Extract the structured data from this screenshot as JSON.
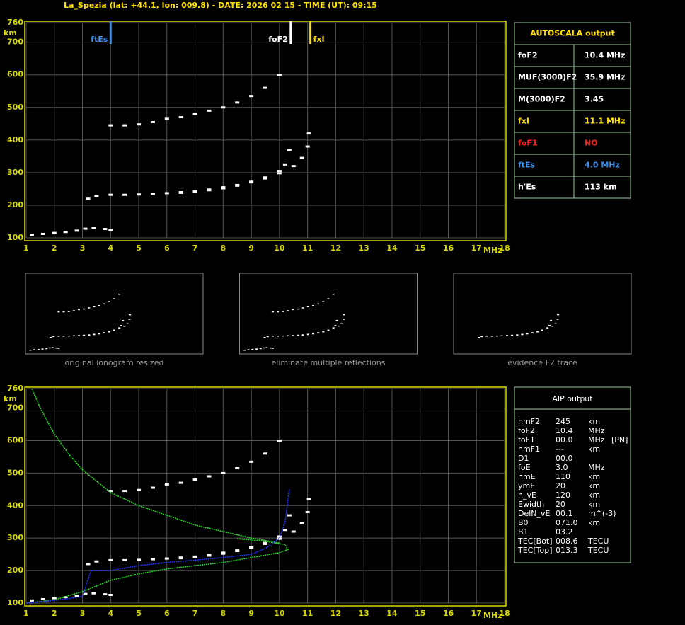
{
  "header": {
    "title": "La_Spezia (lat: +44.1, lon: 009.8) - DATE: 2026 02 15 - TIME (UT): 09:15"
  },
  "chart_data": [
    {
      "type": "scatter",
      "xlabel": "MHz",
      "ylabel": "km",
      "xlim": [
        1,
        18
      ],
      "ylim": [
        100,
        760
      ],
      "xticks": [
        1,
        2,
        3,
        4,
        5,
        6,
        7,
        8,
        9,
        10,
        11,
        12,
        13,
        14,
        15,
        16,
        17,
        18
      ],
      "yticks": [
        100,
        200,
        300,
        400,
        500,
        600,
        700,
        760
      ],
      "grid": true,
      "markers": [
        {
          "label": "ftEs",
          "x": 4.0,
          "color": "#3a8fe8"
        },
        {
          "label": "foF2",
          "x": 10.4,
          "color": "#ffffff"
        },
        {
          "label": "fxI",
          "x": 11.1,
          "color": "#ffe000"
        }
      ],
      "series": [
        {
          "color": "#ffffff",
          "style": "points",
          "x": [
            3.2,
            3.5,
            4,
            4.5,
            5,
            5.5,
            6,
            6.5,
            7,
            7.5,
            8,
            8.5,
            9,
            9.5,
            10,
            10.2,
            10.35
          ],
          "y": [
            220,
            228,
            232,
            232,
            233,
            235,
            237,
            240,
            243,
            248,
            255,
            262,
            272,
            285,
            305,
            325,
            370
          ]
        },
        {
          "color": "#ffffff",
          "style": "points",
          "x": [
            6.5,
            7,
            7.5,
            8,
            8.5,
            9,
            9.5,
            10,
            10.5,
            10.8,
            11,
            11.05
          ],
          "y": [
            238,
            242,
            246,
            252,
            260,
            270,
            282,
            298,
            320,
            345,
            380,
            420
          ]
        },
        {
          "color": "#ffffff",
          "style": "points",
          "x": [
            4,
            4.5,
            5,
            5.5,
            6,
            6.5,
            7,
            7.5,
            8,
            8.5,
            9,
            9.5,
            10
          ],
          "y": [
            445,
            445,
            448,
            455,
            465,
            470,
            480,
            490,
            500,
            515,
            535,
            560,
            600
          ]
        },
        {
          "color": "#ffffff",
          "style": "points",
          "x": [
            1.2,
            1.6,
            2,
            2.4,
            2.8,
            3.1,
            3.4,
            3.8,
            4
          ],
          "y": [
            108,
            112,
            115,
            118,
            122,
            128,
            130,
            127,
            125
          ]
        }
      ]
    },
    {
      "type": "scatter",
      "xlabel": "MHz",
      "ylabel": "km",
      "xlim": [
        1,
        18
      ],
      "ylim": [
        100,
        760
      ],
      "xticks": [
        1,
        2,
        3,
        4,
        5,
        6,
        7,
        8,
        9,
        10,
        11,
        12,
        13,
        14,
        15,
        16,
        17,
        18
      ],
      "yticks": [
        100,
        200,
        300,
        400,
        500,
        600,
        700,
        760
      ],
      "grid": true,
      "series": [
        {
          "color": "#ffffff",
          "style": "points",
          "x": [
            3.2,
            3.5,
            4,
            4.5,
            5,
            5.5,
            6,
            6.5,
            7,
            7.5,
            8,
            8.5,
            9,
            9.5,
            10,
            10.2,
            10.35
          ],
          "y": [
            220,
            228,
            232,
            232,
            233,
            235,
            237,
            240,
            243,
            248,
            255,
            262,
            272,
            285,
            305,
            325,
            370
          ]
        },
        {
          "color": "#ffffff",
          "style": "points",
          "x": [
            6.5,
            7,
            7.5,
            8,
            8.5,
            9,
            9.5,
            10,
            10.5,
            10.8,
            11,
            11.05
          ],
          "y": [
            238,
            242,
            246,
            252,
            260,
            270,
            282,
            298,
            320,
            345,
            380,
            420
          ]
        },
        {
          "color": "#ffffff",
          "style": "points",
          "x": [
            4,
            4.5,
            5,
            5.5,
            6,
            6.5,
            7,
            7.5,
            8,
            8.5,
            9,
            9.5,
            10
          ],
          "y": [
            445,
            445,
            448,
            455,
            465,
            470,
            480,
            490,
            500,
            515,
            535,
            560,
            600
          ]
        },
        {
          "color": "#ffffff",
          "style": "points",
          "x": [
            1.2,
            1.6,
            2,
            2.4,
            2.8,
            3.1,
            3.4,
            3.8,
            4
          ],
          "y": [
            108,
            112,
            115,
            118,
            122,
            128,
            130,
            127,
            125
          ]
        },
        {
          "color": "#22dd22",
          "style": "line",
          "x": [
            1.2,
            1.5,
            2,
            2.5,
            3,
            4,
            5,
            6,
            7,
            8,
            9,
            10
          ],
          "y": [
            760,
            700,
            620,
            560,
            510,
            440,
            400,
            370,
            340,
            320,
            300,
            285
          ]
        },
        {
          "color": "#22dd22",
          "style": "line",
          "x": [
            1,
            2,
            3,
            4,
            5,
            6,
            7,
            8,
            9,
            10,
            10.3,
            10.2,
            9.5,
            8.5
          ],
          "y": [
            100,
            110,
            135,
            170,
            190,
            205,
            215,
            225,
            240,
            255,
            265,
            280,
            290,
            298
          ]
        },
        {
          "color": "#2233ff",
          "style": "line",
          "x": [
            1,
            2,
            3,
            3.3,
            4,
            5,
            6,
            7,
            8,
            9,
            9.5,
            10,
            10.2,
            10.35
          ],
          "y": [
            100,
            108,
            120,
            200,
            200,
            215,
            225,
            232,
            240,
            250,
            268,
            300,
            350,
            450
          ]
        }
      ]
    }
  ],
  "thumbnails": [
    {
      "caption": "original ionogram resized"
    },
    {
      "caption": "eliminate multiple reflections"
    },
    {
      "caption": "evidence F2 trace"
    }
  ],
  "autoscala": {
    "title": "AUTOSCALA output",
    "rows": [
      {
        "label": "foF2",
        "value": "10.4 MHz",
        "color": "#ffffff"
      },
      {
        "label": "MUF(3000)F2",
        "value": "35.9 MHz",
        "color": "#ffffff"
      },
      {
        "label": "M(3000)F2",
        "value": "3.45",
        "color": "#ffffff"
      },
      {
        "label": "fxI",
        "value": "11.1 MHz",
        "color": "#ffe000"
      },
      {
        "label": "foF1",
        "value": "NO",
        "color": "#ff2020"
      },
      {
        "label": "ftEs",
        "value": "4.0 MHz",
        "color": "#3a8fe8"
      },
      {
        "label": "h'Es",
        "value": "113     km",
        "color": "#ffffff"
      }
    ]
  },
  "aip": {
    "title": "AIP output",
    "rows": [
      [
        "hmF2",
        "245",
        "km",
        ""
      ],
      [
        "foF2",
        "10.4",
        "MHz",
        ""
      ],
      [
        "foF1",
        "00.0",
        "MHz",
        "[PN]"
      ],
      [
        "hmF1",
        "---",
        "km",
        ""
      ],
      [
        "D1",
        "00.0",
        "",
        ""
      ],
      [
        "foE",
        "3.0",
        "MHz",
        ""
      ],
      [
        "hmE",
        "110",
        "km",
        ""
      ],
      [
        "ymE",
        "20",
        "km",
        ""
      ],
      [
        "h_vE",
        "120",
        "km",
        ""
      ],
      [
        "Ewidth",
        "20",
        "km",
        ""
      ],
      [
        "DelN_vE",
        "00.1",
        "m^(-3)",
        ""
      ],
      [
        "B0",
        "071.0",
        "km",
        ""
      ],
      [
        "B1",
        "03.2",
        "",
        ""
      ],
      [
        "TEC[Bot]",
        "008.6",
        "TECU",
        ""
      ],
      [
        "TEC[Top]",
        "013.3",
        "TECU",
        ""
      ]
    ]
  }
}
